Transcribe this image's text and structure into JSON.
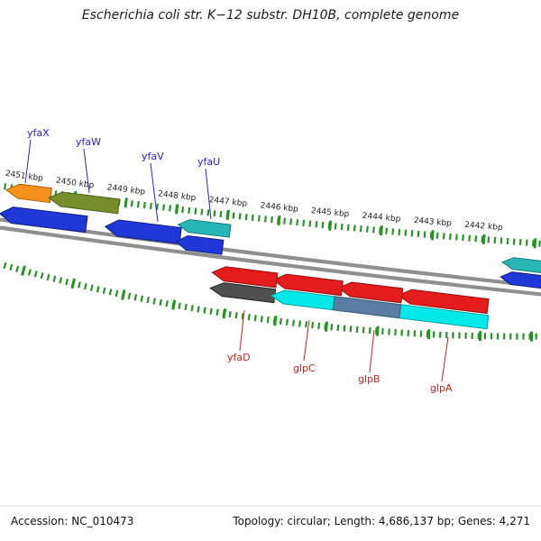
{
  "title": "Escherichia coli str. K−12 substr. DH10B, complete genome",
  "axis": {
    "unit": "kbp",
    "visible_range_kbp": [
      2442,
      2451
    ],
    "tick_labels": [
      "2451 kbp",
      "2450 kbp",
      "2449 kbp",
      "2448 kbp",
      "2447 kbp",
      "2446 kbp",
      "2445 kbp",
      "2444 kbp",
      "2443 kbp",
      "2442 kbp"
    ]
  },
  "genes": {
    "top_strand": [
      {
        "label": "yfaX",
        "color_key": "gene_orange",
        "approx_kbp": [
          2450.6,
          2451.5
        ],
        "points": "left"
      },
      {
        "label": "yfaW",
        "color_key": "gene_olive",
        "approx_kbp": [
          2449.2,
          2450.6
        ],
        "points": "left"
      },
      {
        "label": "yfaV",
        "color_key": "gene_blue",
        "approx_kbp": [
          2448.0,
          2449.4
        ],
        "points": "left"
      },
      {
        "label": "yfaU",
        "color_key": "gene_teal",
        "approx_kbp": [
          2447.0,
          2448.0
        ],
        "points": "left"
      },
      {
        "label": "",
        "color_key": "gene_blue",
        "approx_kbp": [
          2449.8,
          2451.5
        ],
        "points": "left"
      },
      {
        "label": "",
        "color_key": "gene_blue",
        "approx_kbp": [
          2447.1,
          2448.0
        ],
        "points": "left"
      },
      {
        "label": "",
        "color_key": "gene_teal",
        "approx_kbp": [
          2441.0,
          2441.7
        ],
        "points": "left"
      },
      {
        "label": "",
        "color_key": "gene_blue",
        "approx_kbp": [
          2441.0,
          2441.7
        ],
        "points": "left"
      }
    ],
    "bottom_strand": [
      {
        "label": "yfaD",
        "color_key": "gene_red",
        "approx_kbp": [
          2446.0,
          2447.3
        ],
        "points": "left"
      },
      {
        "label": "glpC",
        "color_key": "gene_red",
        "approx_kbp": [
          2444.7,
          2446.1
        ],
        "points": "left"
      },
      {
        "label": "glpB",
        "color_key": "gene_red",
        "approx_kbp": [
          2443.5,
          2444.8
        ],
        "points": "left"
      },
      {
        "label": "glpA",
        "color_key": "gene_red",
        "approx_kbp": [
          2441.9,
          2443.6
        ],
        "points": "left"
      },
      {
        "label": "",
        "color_key": "gene_gray",
        "approx_kbp": [
          2446.0,
          2447.3
        ],
        "points": "left"
      },
      {
        "label": "",
        "color_key": "gene_cyan",
        "approx_kbp": [
          2441.8,
          2446.1
        ],
        "points": "left"
      },
      {
        "label": "",
        "color_key": "gene_slate",
        "approx_kbp": [
          2443.5,
          2444.8
        ],
        "points": "left"
      }
    ]
  },
  "footer": {
    "accession": "Accession: NC_010473",
    "summary": "Topology: circular; Length: 4,686,137 bp; Genes: 4,271"
  },
  "colors": {
    "tick_green": "#259425",
    "backbone_gray": "#8f8f8f",
    "gene_blue": "#2138d8",
    "gene_orange": "#f5921e",
    "gene_olive": "#768e2b",
    "gene_teal": "#29b6b6",
    "gene_red": "#e51c1c",
    "gene_cyan": "#00e8e8",
    "gene_gray": "#4f4f4f",
    "gene_slate": "#5a7da1",
    "label_blue": "#2323cf",
    "label_red": "#d02020"
  }
}
